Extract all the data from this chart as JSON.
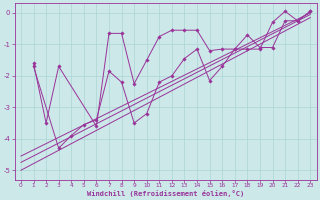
{
  "xlabel": "Windchill (Refroidissement éolien,°C)",
  "bg_color": "#cce8e8",
  "line_color": "#993399",
  "grid_color": "#b0d8d8",
  "ylim": [
    -5.3,
    0.3
  ],
  "xlim": [
    -0.5,
    23.5
  ],
  "yticks": [
    0,
    -1,
    -2,
    -3,
    -4,
    -5
  ],
  "xticks": [
    0,
    1,
    2,
    3,
    4,
    5,
    6,
    7,
    8,
    9,
    10,
    11,
    12,
    13,
    14,
    15,
    16,
    17,
    18,
    19,
    20,
    21,
    22,
    23
  ],
  "series1_x": [
    1,
    2,
    3,
    6,
    7,
    8,
    9,
    10,
    11,
    12,
    13,
    14,
    15,
    16,
    17,
    18,
    19,
    20,
    21,
    22,
    23
  ],
  "series1_y": [
    -1.6,
    -3.5,
    -1.7,
    -3.6,
    -0.65,
    -0.65,
    -2.25,
    -1.5,
    -0.75,
    -0.55,
    -0.55,
    -0.55,
    -1.2,
    -1.15,
    -1.15,
    -1.15,
    -1.15,
    -0.3,
    0.05,
    -0.25,
    0.05
  ],
  "series2_x": [
    1,
    3,
    4,
    5,
    6,
    7,
    8,
    9,
    10,
    11,
    12,
    13,
    14,
    15,
    16,
    17,
    18,
    19,
    20,
    21,
    22,
    23
  ],
  "series2_y": [
    -1.7,
    -4.3,
    -3.9,
    -3.55,
    -3.4,
    -1.85,
    -2.2,
    -3.5,
    -3.2,
    -2.2,
    -2.0,
    -1.45,
    -1.15,
    -2.15,
    -1.7,
    -1.15,
    -0.7,
    -1.1,
    -1.1,
    -0.25,
    -0.25,
    0.05
  ],
  "line3_x": [
    0,
    23
  ],
  "line3_y": [
    -4.75,
    -0.05
  ],
  "line4_x": [
    0,
    23
  ],
  "line4_y": [
    -4.55,
    0.0
  ],
  "line5_x": [
    0,
    23
  ],
  "line5_y": [
    -5.0,
    -0.15
  ],
  "xtick_fontsize": 4.2,
  "ytick_fontsize": 5.0,
  "xlabel_fontsize": 5.0
}
